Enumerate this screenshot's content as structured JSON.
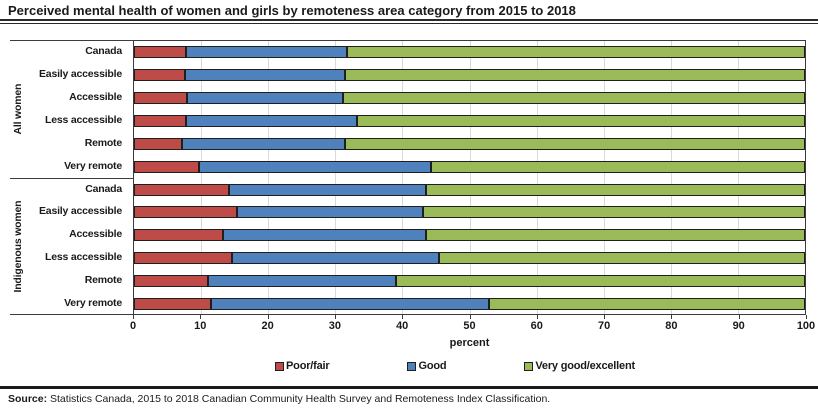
{
  "title": "Perceived mental health of women and girls by remoteness area category from 2015 to 2018",
  "source": {
    "prefix": "Source:",
    "text": " Statistics Canada, 2015 to 2018 Canadian Community Health Survey and Remoteness Index Classification."
  },
  "chart_data": {
    "type": "bar",
    "orientation": "horizontal",
    "stacked": true,
    "xlabel": "percent",
    "xlim": [
      0,
      100
    ],
    "xticks": [
      0,
      10,
      20,
      30,
      40,
      50,
      60,
      70,
      80,
      90,
      100
    ],
    "grid": "vertical-light",
    "legend_position": "bottom",
    "series": [
      {
        "name": "Poor/fair",
        "color": "#BE4B48"
      },
      {
        "name": "Good",
        "color": "#4F81BD"
      },
      {
        "name": "Very good/excellent",
        "color": "#9BBB59"
      }
    ],
    "groups": [
      {
        "label": "All women",
        "rows": [
          {
            "category": "Canada",
            "values": [
              7.7,
              24.0,
              68.3
            ]
          },
          {
            "category": "Easily accessible",
            "values": [
              7.6,
              23.9,
              68.5
            ]
          },
          {
            "category": "Accessible",
            "values": [
              7.9,
              23.3,
              68.8
            ]
          },
          {
            "category": "Less accessible",
            "values": [
              7.8,
              25.4,
              66.8
            ]
          },
          {
            "category": "Remote",
            "values": [
              7.2,
              24.2,
              68.6
            ]
          },
          {
            "category": "Very remote",
            "values": [
              9.7,
              34.5,
              55.8
            ]
          }
        ]
      },
      {
        "label": "Indigenous women",
        "rows": [
          {
            "category": "Canada",
            "values": [
              14.1,
              29.4,
              56.5
            ]
          },
          {
            "category": "Easily accessible",
            "values": [
              15.3,
              27.8,
              56.9
            ]
          },
          {
            "category": "Accessible",
            "values": [
              13.3,
              30.2,
              56.5
            ]
          },
          {
            "category": "Less accessible",
            "values": [
              14.6,
              30.8,
              54.6
            ]
          },
          {
            "category": "Remote",
            "values": [
              11.1,
              28.0,
              60.9
            ]
          },
          {
            "category": "Very remote",
            "values": [
              11.5,
              41.4,
              47.1
            ]
          }
        ]
      }
    ]
  }
}
